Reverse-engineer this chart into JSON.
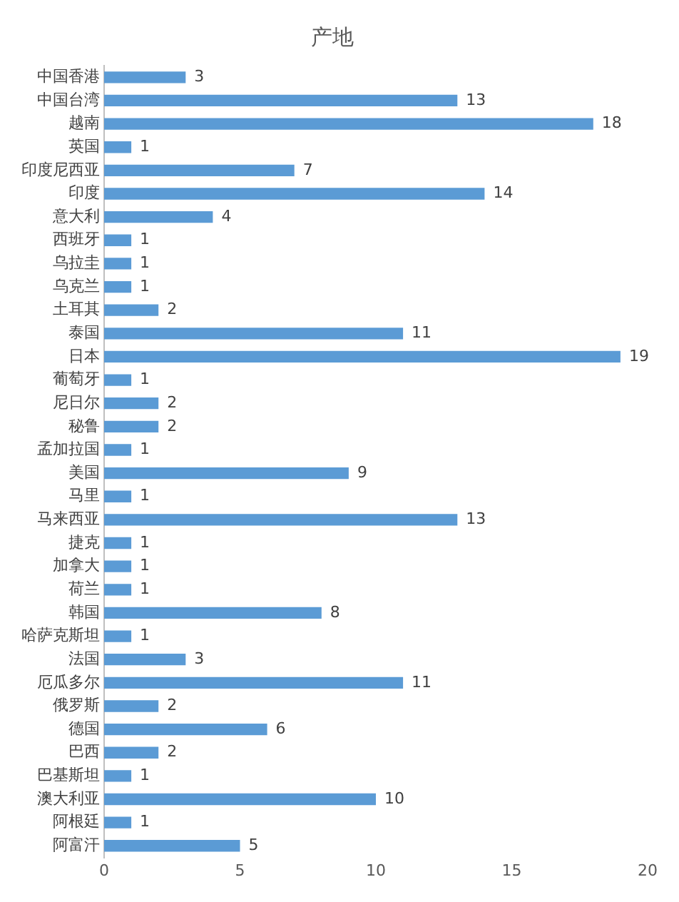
{
  "chart_data": {
    "type": "bar",
    "orientation": "horizontal",
    "title": "产地",
    "categories": [
      "中国香港",
      "中国台湾",
      "越南",
      "英国",
      "印度尼西亚",
      "印度",
      "意大利",
      "西班牙",
      "乌拉圭",
      "乌克兰",
      "土耳其",
      "泰国",
      "日本",
      "葡萄牙",
      "尼日尔",
      "秘鲁",
      "孟加拉国",
      "美国",
      "马里",
      "马来西亚",
      "捷克",
      "加拿大",
      "荷兰",
      "韩国",
      "哈萨克斯坦",
      "法国",
      "厄瓜多尔",
      "俄罗斯",
      "德国",
      "巴西",
      "巴基斯坦",
      "澳大利亚",
      "阿根廷",
      "阿富汗"
    ],
    "values": [
      3,
      13,
      18,
      1,
      7,
      14,
      4,
      1,
      1,
      1,
      2,
      11,
      19,
      1,
      2,
      2,
      1,
      9,
      1,
      13,
      1,
      1,
      1,
      8,
      1,
      3,
      11,
      2,
      6,
      2,
      1,
      10,
      1,
      5
    ],
    "color": "#5b9bd5",
    "xlim": [
      0,
      20
    ],
    "xticks": [
      0,
      5,
      10,
      15,
      20
    ],
    "grid": false,
    "data_labels": true,
    "legend": false
  }
}
